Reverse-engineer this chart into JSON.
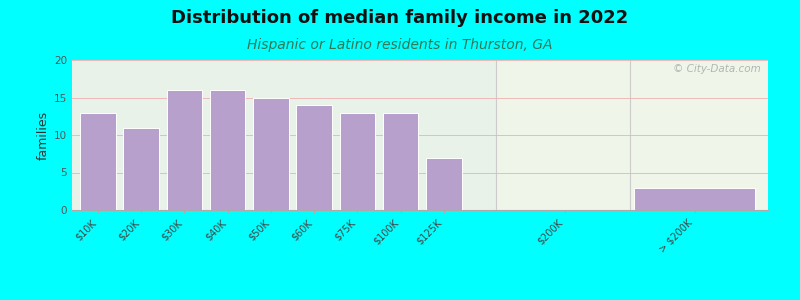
{
  "title": "Distribution of median family income in 2022",
  "subtitle": "Hispanic or Latino residents in Thurston, GA",
  "ylabel": "families",
  "background_outer": "#00FFFF",
  "bar_color": "#b8a0cc",
  "bar_edge_color": "#ffffff",
  "categories": [
    "$10K",
    "$20K",
    "$30K",
    "$40K",
    "$50K",
    "$60K",
    "$75K",
    "$100K",
    "$125K",
    "$200K",
    "> $200K"
  ],
  "values": [
    13,
    11,
    16,
    16,
    15,
    14,
    13,
    13,
    7,
    0,
    3
  ],
  "ylim": [
    0,
    20
  ],
  "yticks": [
    0,
    5,
    10,
    15,
    20
  ],
  "watermark": "© City-Data.com",
  "title_fontsize": 13,
  "subtitle_fontsize": 10,
  "ylabel_fontsize": 9,
  "tick_fontsize": 7,
  "grid_color": "#f0b0b0",
  "bg_left_top": "#e8f5e8",
  "bg_left_bot": "#e8f5e8",
  "bg_right_top": "#f0f5e5",
  "bg_right_bot": "#e8f0e0",
  "separator_color": "#cccccc"
}
